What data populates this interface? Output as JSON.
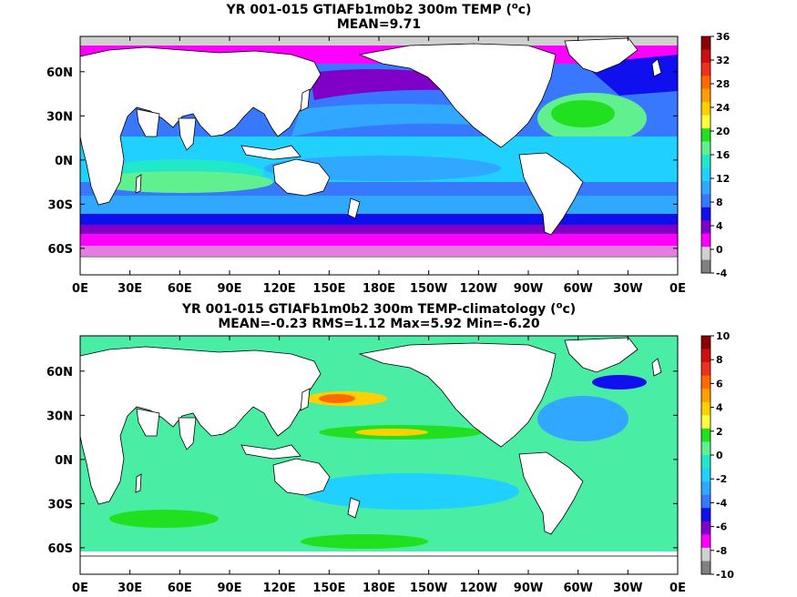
{
  "panels": [
    {
      "title_prefix": "YR 001-015 GTIAFb1m0b2 300m TEMP (",
      "title_unit": "o",
      "title_suffix": "c)",
      "subtitle": "MEAN=9.71",
      "colorbar_ticks": [
        "36",
        "32",
        "28",
        "24",
        "20",
        "16",
        "12",
        "8",
        "4",
        "0",
        "-4"
      ],
      "colorbar_colors": [
        "#8b0000",
        "#cc1010",
        "#ee3020",
        "#ff6a00",
        "#ffa000",
        "#ffd000",
        "#ffff40",
        "#20e020",
        "#60f090",
        "#20e8c8",
        "#20d0ff",
        "#30a8ff",
        "#3878ff",
        "#1010ee",
        "#8000c8",
        "#ff00ff",
        "#d0d0d0",
        "#808080"
      ]
    },
    {
      "title_prefix": "YR 001-015 GTIAFb1m0b2 300m TEMP-climatology (",
      "title_unit": "o",
      "title_suffix": "c)",
      "subtitle": "MEAN=-0.23   RMS=1.12   Max=5.92   Min=-6.20",
      "colorbar_ticks": [
        "10",
        "8",
        "6",
        "4",
        "2",
        "0",
        "-2",
        "-4",
        "-6",
        "-8",
        "-10"
      ],
      "colorbar_colors": [
        "#8b0000",
        "#cc1010",
        "#ee3020",
        "#ff6a00",
        "#ffa000",
        "#ffd000",
        "#ffff40",
        "#20e020",
        "#60f090",
        "#20e8c8",
        "#20d0ff",
        "#30a8ff",
        "#3878ff",
        "#1010ee",
        "#8000c8",
        "#ff00ff",
        "#d0d0d0",
        "#808080"
      ]
    }
  ],
  "x_ticks": [
    "0E",
    "30E",
    "60E",
    "90E",
    "120E",
    "150E",
    "180E",
    "150W",
    "120W",
    "90W",
    "60W",
    "30W",
    "0E"
  ],
  "y_ticks": [
    "60N",
    "30N",
    "0N",
    "30S",
    "60S"
  ]
}
